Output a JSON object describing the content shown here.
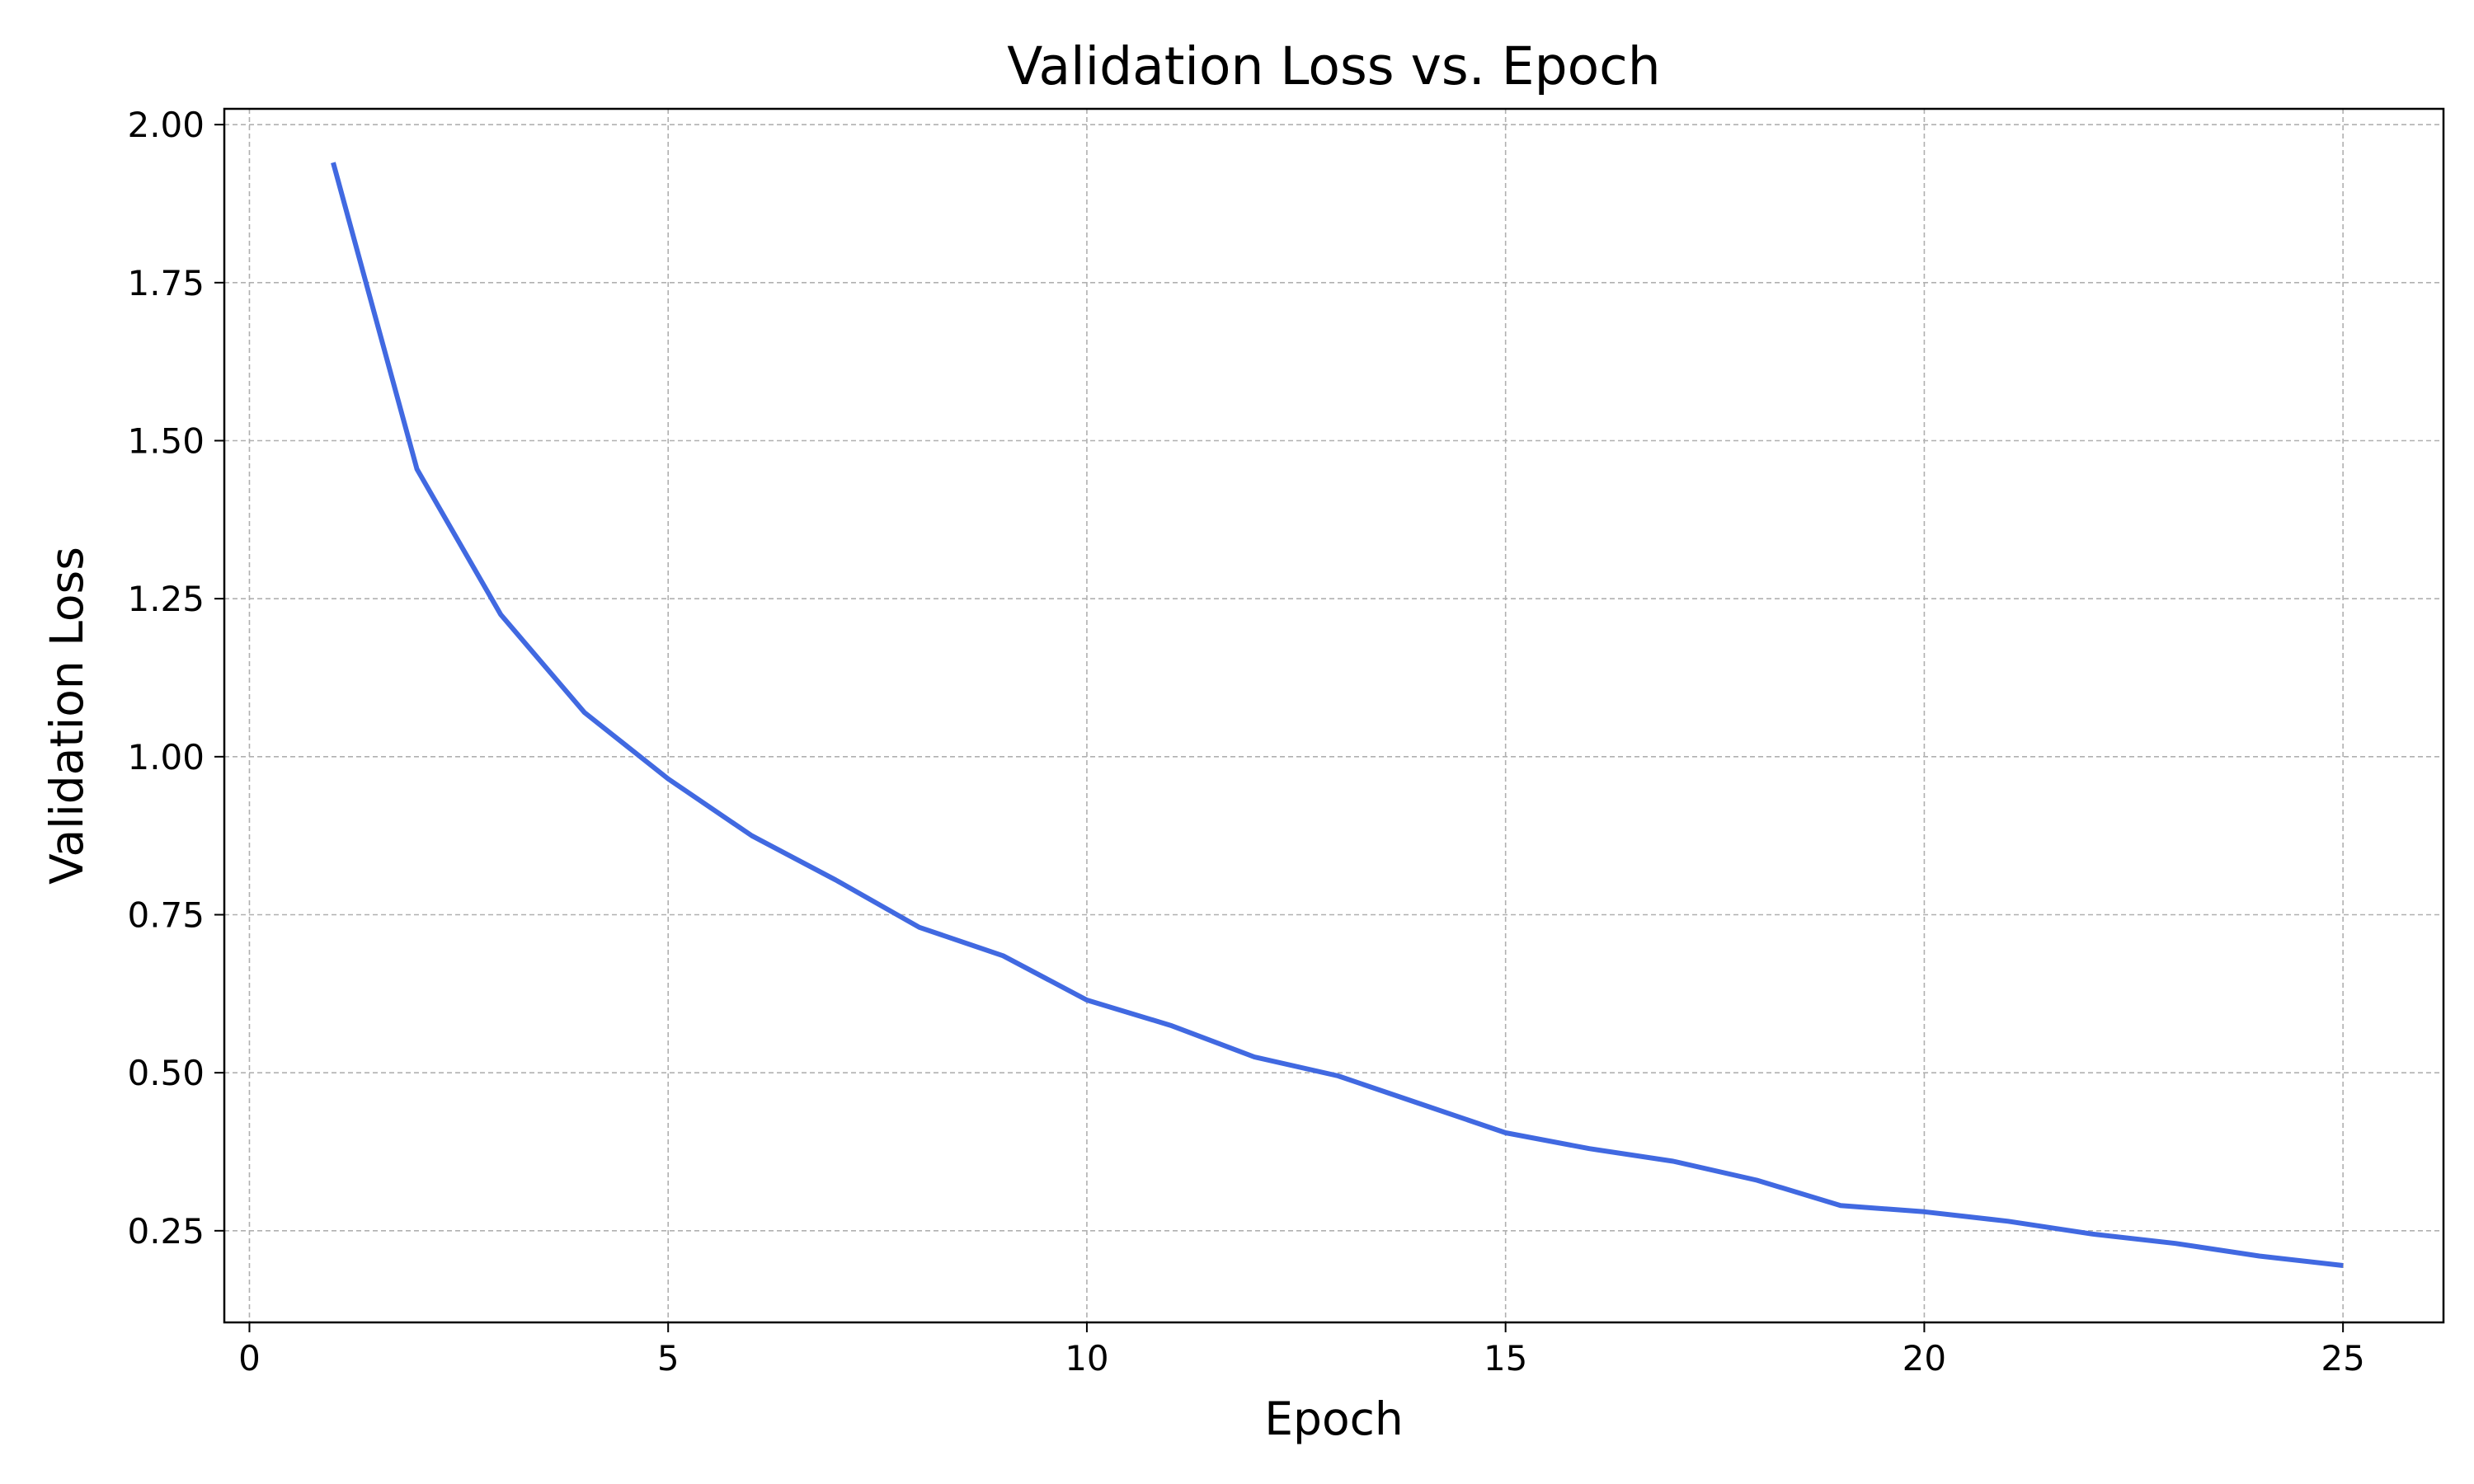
{
  "chart_data": {
    "type": "line",
    "title": "Validation Loss vs. Epoch",
    "xlabel": "Epoch",
    "ylabel": "Validation Loss",
    "xlim": [
      -0.3,
      26.2
    ],
    "ylim": [
      0.105,
      2.025
    ],
    "xticks": [
      0,
      5,
      10,
      15,
      20,
      25
    ],
    "xtick_labels": [
      "0",
      "5",
      "10",
      "15",
      "20",
      "25"
    ],
    "yticks": [
      0.25,
      0.5,
      0.75,
      1.0,
      1.25,
      1.5,
      1.75,
      2.0
    ],
    "ytick_labels": [
      "0.25",
      "0.50",
      "0.75",
      "1.00",
      "1.25",
      "1.50",
      "1.75",
      "2.00"
    ],
    "grid": true,
    "legend": "none",
    "series_color": "#4169e1",
    "x": [
      1,
      2,
      3,
      4,
      5,
      6,
      7,
      8,
      9,
      10,
      11,
      12,
      13,
      14,
      15,
      16,
      17,
      18,
      19,
      20,
      21,
      22,
      23,
      24,
      25
    ],
    "series": [
      {
        "values": [
          1.94,
          1.455,
          1.225,
          1.07,
          0.965,
          0.875,
          0.805,
          0.73,
          0.685,
          0.615,
          0.575,
          0.525,
          0.495,
          0.45,
          0.405,
          0.38,
          0.36,
          0.33,
          0.29,
          0.28,
          0.265,
          0.245,
          0.23,
          0.21,
          0.195
        ]
      }
    ]
  }
}
